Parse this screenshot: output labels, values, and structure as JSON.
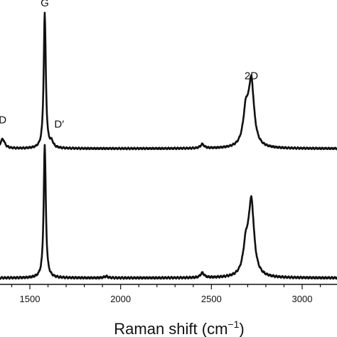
{
  "chart_data": {
    "type": "line",
    "xlabel": "Raman shift (cm",
    "xlabel_sup": "−1",
    "xlabel_close": ")",
    "xlim": [
      1300,
      3200
    ],
    "x_ticks": [
      {
        "value": 1500,
        "label": "1500"
      },
      {
        "value": 2000,
        "label": "2000"
      },
      {
        "value": 2500,
        "label": "2500"
      },
      {
        "value": 3000,
        "label": "3000"
      }
    ],
    "y_axis_shown": false,
    "grid": false,
    "series": [
      {
        "peaks": [
          {
            "x": 1350,
            "y": 0.07
          },
          {
            "x": 1582,
            "y": 1.0
          },
          {
            "x": 1620,
            "y": 0.04
          },
          {
            "x": 2450,
            "y": 0.03
          },
          {
            "x": 2690,
            "y": 0.25
          },
          {
            "x": 2720,
            "y": 0.47
          }
        ],
        "annotations": [
          {
            "text": "D",
            "x": 1350
          },
          {
            "text": "G",
            "x": 1582
          },
          {
            "text": "D′",
            "x": 1630
          },
          {
            "text": "2D",
            "x": 2720
          }
        ]
      },
      {
        "peaks": [
          {
            "x": 1582,
            "y": 0.85
          },
          {
            "x": 1920,
            "y": 0.01
          },
          {
            "x": 2450,
            "y": 0.03
          },
          {
            "x": 2690,
            "y": 0.18
          },
          {
            "x": 2720,
            "y": 0.47
          }
        ]
      }
    ]
  }
}
